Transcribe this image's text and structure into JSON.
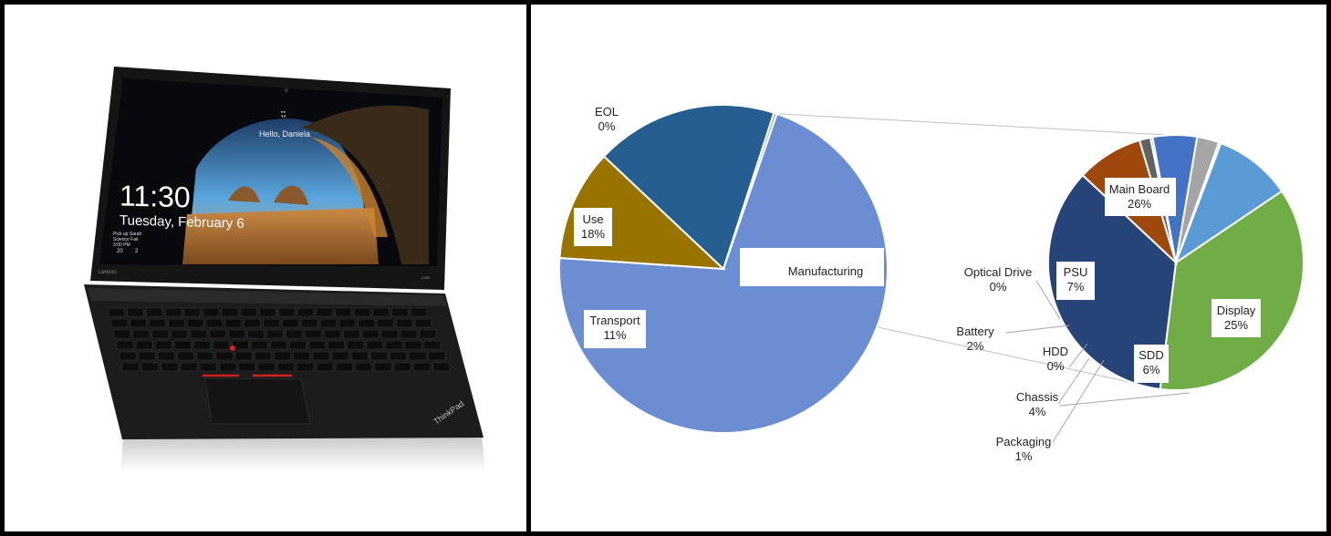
{
  "laptop": {
    "time": "11:30",
    "date": "Tuesday, February 6",
    "greeting": "Hello, Daniela",
    "notice_line1": "Pick up Sarah",
    "notice_line2": "Science Fair",
    "notice_line3": "3:00 PM",
    "status_count_a": "20",
    "status_count_b": "2",
    "lid_brand": "Lenovo",
    "model": "L580",
    "base_brand": "ThinkPad"
  },
  "colors": {
    "manufacturing": "#6A8ED1",
    "use": "#255E91",
    "transport": "#997300",
    "eol": "#A5A5A5",
    "main_board": "#70AD47",
    "display": "#264478",
    "sdd": "#9E480E",
    "packaging": "#636363",
    "chassis": "#4472C4",
    "battery": "#A5A5A5",
    "psu": "#5B9BD5",
    "connector": "#BFBFBF"
  },
  "chart_data": [
    {
      "type": "pie",
      "title": "",
      "slices": [
        {
          "label": "Manufacturing",
          "value": 71,
          "display": ""
        },
        {
          "label": "Transport",
          "value": 11,
          "display": "11%"
        },
        {
          "label": "Use",
          "value": 18,
          "display": "18%"
        },
        {
          "label": "EOL",
          "value": 0.3,
          "display": "0%"
        }
      ]
    },
    {
      "type": "pie",
      "title": "",
      "slices": [
        {
          "label": "Main Board",
          "value": 26,
          "display": "26%"
        },
        {
          "label": "Display",
          "value": 25,
          "display": "25%"
        },
        {
          "label": "SDD",
          "value": 6,
          "display": "6%"
        },
        {
          "label": "Packaging",
          "value": 1,
          "display": "1%"
        },
        {
          "label": "HDD",
          "value": 0,
          "display": "0%"
        },
        {
          "label": "Chassis",
          "value": 4,
          "display": "4%"
        },
        {
          "label": "Battery",
          "value": 2,
          "display": "2%"
        },
        {
          "label": "Optical Drive",
          "value": 0,
          "display": "0%"
        },
        {
          "label": "PSU",
          "value": 7,
          "display": "7%"
        }
      ]
    }
  ]
}
